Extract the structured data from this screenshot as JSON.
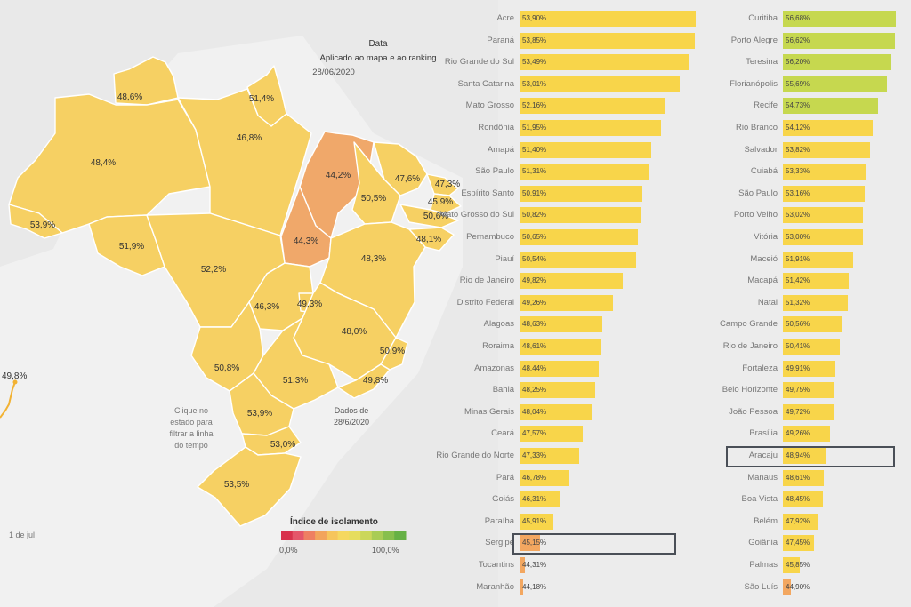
{
  "header": {
    "title": "Data",
    "subtitle": "Aplicado ao mapa e ao ranking",
    "date": "28/06/2020"
  },
  "map_notes": {
    "click_hint_lines": [
      "Clique no",
      "estado para",
      "filtrar a linha",
      "do tempo"
    ],
    "data_date_lines": [
      "Dados de",
      "28/6/2020"
    ]
  },
  "timeline": {
    "value_label": "49,8%",
    "date_label": "1 de jul"
  },
  "legend": {
    "title": "Índice de isolamento",
    "min_label": "0,0%",
    "max_label": "100,0%",
    "colors": [
      "#d8324d",
      "#e4566a",
      "#ee7f62",
      "#f2a45c",
      "#f6c55c",
      "#f5d860",
      "#e6dd5e",
      "#cbd75a",
      "#a9cc55",
      "#87bf4d",
      "#66b145"
    ]
  },
  "colors": {
    "state_default": "#f6d063",
    "state_low": "#f0a86a",
    "bar_yellow": "#f8d54a",
    "bar_green": "#c6d84f",
    "bar_orange": "#f3a760",
    "highlight_border": "#4a4f57"
  },
  "chart_data": [
    {
      "type": "map",
      "name": "Índice de isolamento por estado",
      "states": [
        {
          "label": "48,6%",
          "value": 48.6
        },
        {
          "label": "51,4%",
          "value": 51.4
        },
        {
          "label": "48,4%",
          "value": 48.4
        },
        {
          "label": "46,8%",
          "value": 46.8
        },
        {
          "label": "53,9%",
          "value": 53.9
        },
        {
          "label": "44,2%",
          "value": 44.2
        },
        {
          "label": "47,6%",
          "value": 47.6
        },
        {
          "label": "47,3%",
          "value": 47.3
        },
        {
          "label": "50,5%",
          "value": 50.5
        },
        {
          "label": "45,9%",
          "value": 45.9
        },
        {
          "label": "50,6%",
          "value": 50.6
        },
        {
          "label": "48,1%",
          "value": 48.1
        },
        {
          "label": "44,3%",
          "value": 44.3
        },
        {
          "label": "51,9%",
          "value": 51.9
        },
        {
          "label": "52,2%",
          "value": 52.2
        },
        {
          "label": "48,3%",
          "value": 48.3
        },
        {
          "label": "46,3%",
          "value": 46.3
        },
        {
          "label": "49,3%",
          "value": 49.3
        },
        {
          "label": "48,0%",
          "value": 48.0
        },
        {
          "label": "50,9%",
          "value": 50.9
        },
        {
          "label": "50,8%",
          "value": 50.8
        },
        {
          "label": "51,3%",
          "value": 51.3
        },
        {
          "label": "49,8%",
          "value": 49.8
        },
        {
          "label": "53,9%",
          "value": 53.9
        },
        {
          "label": "53,0%",
          "value": 53.0
        },
        {
          "label": "53,5%",
          "value": 53.5
        }
      ]
    },
    {
      "type": "bar",
      "orientation": "horizontal",
      "name": "Ranking estados",
      "highlighted": "Sergipe",
      "xlim": [
        0,
        60
      ],
      "rows": [
        {
          "name": "Acre",
          "value": 53.9,
          "label": "53,90%"
        },
        {
          "name": "Paraná",
          "value": 53.85,
          "label": "53,85%"
        },
        {
          "name": "Rio Grande do Sul",
          "value": 53.49,
          "label": "53,49%"
        },
        {
          "name": "Santa Catarina",
          "value": 53.01,
          "label": "53,01%"
        },
        {
          "name": "Mato Grosso",
          "value": 52.16,
          "label": "52,16%"
        },
        {
          "name": "Rondônia",
          "value": 51.95,
          "label": "51,95%"
        },
        {
          "name": "Amapá",
          "value": 51.4,
          "label": "51,40%"
        },
        {
          "name": "São Paulo",
          "value": 51.31,
          "label": "51,31%"
        },
        {
          "name": "Espírito Santo",
          "value": 50.91,
          "label": "50,91%"
        },
        {
          "name": "Mato Grosso do Sul",
          "value": 50.82,
          "label": "50,82%"
        },
        {
          "name": "Pernambuco",
          "value": 50.65,
          "label": "50,65%"
        },
        {
          "name": "Piauí",
          "value": 50.54,
          "label": "50,54%"
        },
        {
          "name": "Rio de Janeiro",
          "value": 49.82,
          "label": "49,82%"
        },
        {
          "name": "Distrito Federal",
          "value": 49.26,
          "label": "49,26%"
        },
        {
          "name": "Alagoas",
          "value": 48.63,
          "label": "48,63%"
        },
        {
          "name": "Roraima",
          "value": 48.61,
          "label": "48,61%"
        },
        {
          "name": "Amazonas",
          "value": 48.44,
          "label": "48,44%"
        },
        {
          "name": "Bahia",
          "value": 48.25,
          "label": "48,25%"
        },
        {
          "name": "Minas Gerais",
          "value": 48.04,
          "label": "48,04%"
        },
        {
          "name": "Ceará",
          "value": 47.57,
          "label": "47,57%"
        },
        {
          "name": "Rio Grande do Norte",
          "value": 47.33,
          "label": "47,33%"
        },
        {
          "name": "Pará",
          "value": 46.78,
          "label": "46,78%"
        },
        {
          "name": "Goiás",
          "value": 46.31,
          "label": "46,31%"
        },
        {
          "name": "Paraíba",
          "value": 45.91,
          "label": "45,91%"
        },
        {
          "name": "Sergipe",
          "value": 45.15,
          "label": "45,15%"
        },
        {
          "name": "Tocantins",
          "value": 44.31,
          "label": "44,31%"
        },
        {
          "name": "Maranhão",
          "value": 44.18,
          "label": "44,18%"
        }
      ]
    },
    {
      "type": "bar",
      "orientation": "horizontal",
      "name": "Ranking capitais",
      "highlighted": "Aracaju",
      "xlim": [
        0,
        60
      ],
      "rows": [
        {
          "name": "Curitiba",
          "value": 56.68,
          "label": "56,68%"
        },
        {
          "name": "Porto Alegre",
          "value": 56.62,
          "label": "56,62%"
        },
        {
          "name": "Teresina",
          "value": 56.2,
          "label": "56,20%"
        },
        {
          "name": "Florianópolis",
          "value": 55.69,
          "label": "55,69%"
        },
        {
          "name": "Recife",
          "value": 54.73,
          "label": "54,73%"
        },
        {
          "name": "Rio Branco",
          "value": 54.12,
          "label": "54,12%"
        },
        {
          "name": "Salvador",
          "value": 53.82,
          "label": "53,82%"
        },
        {
          "name": "Cuiabá",
          "value": 53.33,
          "label": "53,33%"
        },
        {
          "name": "São Paulo",
          "value": 53.16,
          "label": "53,16%"
        },
        {
          "name": "Porto Velho",
          "value": 53.02,
          "label": "53,02%"
        },
        {
          "name": "Vitória",
          "value": 53.0,
          "label": "53,00%"
        },
        {
          "name": "Maceió",
          "value": 51.91,
          "label": "51,91%"
        },
        {
          "name": "Macapá",
          "value": 51.42,
          "label": "51,42%"
        },
        {
          "name": "Natal",
          "value": 51.32,
          "label": "51,32%"
        },
        {
          "name": "Campo Grande",
          "value": 50.56,
          "label": "50,56%"
        },
        {
          "name": "Rio de Janeiro",
          "value": 50.41,
          "label": "50,41%"
        },
        {
          "name": "Fortaleza",
          "value": 49.91,
          "label": "49,91%"
        },
        {
          "name": "Belo Horizonte",
          "value": 49.75,
          "label": "49,75%"
        },
        {
          "name": "João Pessoa",
          "value": 49.72,
          "label": "49,72%"
        },
        {
          "name": "Brasília",
          "value": 49.26,
          "label": "49,26%"
        },
        {
          "name": "Aracaju",
          "value": 48.94,
          "label": "48,94%"
        },
        {
          "name": "Manaus",
          "value": 48.61,
          "label": "48,61%"
        },
        {
          "name": "Boa Vista",
          "value": 48.45,
          "label": "48,45%"
        },
        {
          "name": "Belém",
          "value": 47.92,
          "label": "47,92%"
        },
        {
          "name": "Goiânia",
          "value": 47.45,
          "label": "47,45%"
        },
        {
          "name": "Palmas",
          "value": 45.85,
          "label": "45,85%"
        },
        {
          "name": "São Luís",
          "value": 44.9,
          "label": "44,90%"
        }
      ]
    }
  ]
}
